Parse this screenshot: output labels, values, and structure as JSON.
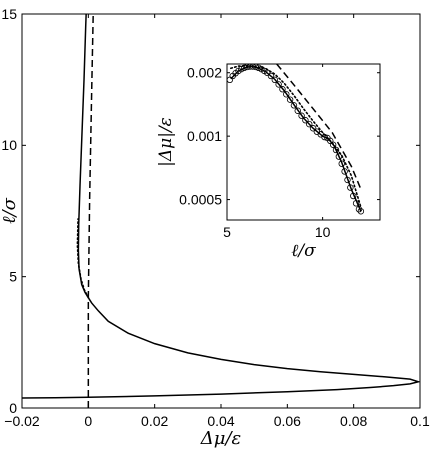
{
  "chart_data": [
    {
      "type": "line",
      "xlabel": "Δμ/ε",
      "ylabel": "ℓ/σ",
      "xlim": [
        -0.02,
        0.1
      ],
      "ylim": [
        0,
        15
      ],
      "x_ticks": [
        -0.02,
        0,
        0.02,
        0.04,
        0.06,
        0.08,
        0.1
      ],
      "x_tick_labels": [
        "−0.02",
        "0",
        "0.02",
        "0.04",
        "0.06",
        "0.08",
        "0.1"
      ],
      "y_ticks": [
        0,
        5,
        10,
        15
      ],
      "y_tick_labels": [
        "0",
        "5",
        "10",
        "15"
      ],
      "grid": false,
      "series": [
        {
          "style": "solid",
          "color": "#000000",
          "points": [
            [
              -0.0205,
              0.38
            ],
            [
              -0.01,
              0.39
            ],
            [
              0.0,
              0.41
            ],
            [
              0.02,
              0.46
            ],
            [
              0.04,
              0.53
            ],
            [
              0.06,
              0.62
            ],
            [
              0.075,
              0.7
            ],
            [
              0.085,
              0.78
            ],
            [
              0.092,
              0.85
            ],
            [
              0.097,
              0.92
            ],
            [
              0.0995,
              1.0
            ],
            [
              0.097,
              1.1
            ],
            [
              0.09,
              1.18
            ],
            [
              0.08,
              1.28
            ],
            [
              0.07,
              1.38
            ],
            [
              0.06,
              1.5
            ],
            [
              0.05,
              1.65
            ],
            [
              0.04,
              1.85
            ],
            [
              0.03,
              2.1
            ],
            [
              0.02,
              2.45
            ],
            [
              0.012,
              2.85
            ],
            [
              0.006,
              3.3
            ],
            [
              0.003,
              3.7
            ],
            [
              0.001,
              4.0
            ],
            [
              0.0,
              4.2
            ],
            [
              -0.001,
              4.4
            ],
            [
              -0.002,
              4.7
            ],
            [
              -0.0028,
              5.3
            ],
            [
              -0.003,
              6.0
            ],
            [
              -0.0029,
              7.0
            ],
            [
              -0.0025,
              8.5
            ],
            [
              -0.0019,
              10.5
            ],
            [
              -0.0013,
              12.5
            ],
            [
              -0.0008,
              14.5
            ],
            [
              -0.0006,
              15.2
            ]
          ]
        },
        {
          "style": "dotted",
          "color": "#000000",
          "points": [
            [
              0.0,
              4.2
            ],
            [
              -0.0012,
              4.5
            ],
            [
              -0.0022,
              4.9
            ],
            [
              -0.003,
              5.5
            ],
            [
              -0.0033,
              6.2
            ],
            [
              -0.0031,
              7.2
            ]
          ]
        },
        {
          "style": "dashed",
          "color": "#000000",
          "points": [
            [
              0.0,
              0.0
            ],
            [
              0.0,
              4.2
            ],
            [
              0.0004,
              8.0
            ],
            [
              0.001,
              12.0
            ],
            [
              0.0015,
              15.2
            ]
          ]
        }
      ]
    },
    {
      "type": "line",
      "inset": true,
      "xlabel": "ℓ/σ",
      "ylabel": "|Δμ|/ε",
      "xlim": [
        5,
        13
      ],
      "ylim": [
        0.0004,
        0.0022
      ],
      "y_scale": "log",
      "x_ticks": [
        5,
        10
      ],
      "x_tick_labels": [
        "5",
        "10"
      ],
      "y_ticks": [
        0.0005,
        0.001,
        0.002
      ],
      "y_tick_labels": [
        "0.0005",
        "0.001",
        "0.002"
      ],
      "grid": false,
      "series": [
        {
          "style": "markers",
          "marker": "circle-open",
          "points": [
            [
              5.15,
              0.00185
            ],
            [
              5.3,
              0.00193
            ],
            [
              5.45,
              0.00199
            ],
            [
              5.6,
              0.00204
            ],
            [
              5.75,
              0.00208
            ],
            [
              5.9,
              0.00211
            ],
            [
              6.05,
              0.00213
            ],
            [
              6.2,
              0.00214
            ],
            [
              6.35,
              0.00214
            ],
            [
              6.5,
              0.00213
            ],
            [
              6.65,
              0.00211
            ],
            [
              6.8,
              0.00208
            ],
            [
              6.95,
              0.00204
            ],
            [
              7.1,
              0.002
            ],
            [
              7.3,
              0.00193
            ],
            [
              7.5,
              0.00185
            ],
            [
              7.7,
              0.00176
            ],
            [
              7.9,
              0.00167
            ],
            [
              8.1,
              0.00158
            ],
            [
              8.3,
              0.00149
            ],
            [
              8.5,
              0.0014
            ],
            [
              8.7,
              0.00132
            ],
            [
              8.9,
              0.00125
            ],
            [
              9.1,
              0.00119
            ],
            [
              9.3,
              0.00114
            ],
            [
              9.5,
              0.00109
            ],
            [
              9.7,
              0.00105
            ],
            [
              9.9,
              0.00102
            ],
            [
              10.1,
              0.00099
            ],
            [
              10.25,
              0.00098
            ],
            [
              10.4,
              0.00095
            ],
            [
              10.55,
              0.00091
            ],
            [
              10.7,
              0.00086
            ],
            [
              10.85,
              0.0008
            ],
            [
              11.0,
              0.00074
            ],
            [
              11.15,
              0.00068
            ],
            [
              11.3,
              0.00062
            ],
            [
              11.45,
              0.00057
            ],
            [
              11.6,
              0.00052
            ],
            [
              11.75,
              0.00048
            ],
            [
              11.9,
              0.00045
            ],
            [
              12.0,
              0.00044
            ]
          ]
        },
        {
          "style": "solid",
          "color": "#000000",
          "points": [
            [
              5.2,
              0.00187
            ],
            [
              5.6,
              0.00204
            ],
            [
              6.0,
              0.00212
            ],
            [
              6.3,
              0.00214
            ],
            [
              6.6,
              0.00211
            ],
            [
              7.0,
              0.00203
            ],
            [
              7.5,
              0.00186
            ],
            [
              8.0,
              0.00164
            ],
            [
              8.5,
              0.00141
            ],
            [
              9.0,
              0.00122
            ],
            [
              9.5,
              0.00109
            ],
            [
              10.0,
              0.001
            ],
            [
              10.3,
              0.00097
            ],
            [
              10.6,
              0.0009
            ],
            [
              11.0,
              0.00075
            ],
            [
              11.5,
              0.00056
            ],
            [
              12.0,
              0.00044
            ]
          ]
        },
        {
          "style": "dotted",
          "color": "#000000",
          "points": [
            [
              5.2,
              0.0021
            ],
            [
              5.6,
              0.00215
            ],
            [
              6.0,
              0.00216
            ],
            [
              6.5,
              0.00214
            ],
            [
              7.0,
              0.0021
            ],
            [
              7.5,
              0.00197
            ],
            [
              8.0,
              0.00178
            ],
            [
              8.5,
              0.00156
            ],
            [
              9.0,
              0.00135
            ],
            [
              9.5,
              0.00118
            ],
            [
              10.0,
              0.00104
            ],
            [
              10.5,
              0.00093
            ],
            [
              11.0,
              0.00081
            ],
            [
              11.5,
              0.00065
            ],
            [
              12.0,
              0.00046
            ]
          ]
        },
        {
          "style": "dashed",
          "color": "#000000",
          "points": [
            [
              7.6,
              0.0022
            ],
            [
              8.5,
              0.00175
            ],
            [
              9.5,
              0.00135
            ],
            [
              10.5,
              0.00104
            ],
            [
              11.5,
              0.00072
            ],
            [
              12.0,
              0.00056
            ]
          ]
        }
      ]
    }
  ]
}
